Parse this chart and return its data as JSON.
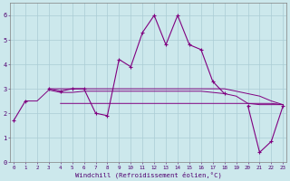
{
  "xlabel": "Windchill (Refroidissement éolien,°C)",
  "x": [
    0,
    1,
    2,
    3,
    4,
    5,
    6,
    7,
    8,
    9,
    10,
    11,
    12,
    13,
    14,
    15,
    16,
    17,
    18,
    19,
    20,
    21,
    22,
    23
  ],
  "main_series": [
    1.7,
    2.5,
    null,
    3.0,
    2.9,
    3.0,
    3.0,
    2.0,
    1.9,
    4.2,
    3.9,
    5.3,
    6.0,
    4.8,
    6.0,
    4.8,
    4.6,
    3.3,
    2.8,
    null,
    2.3,
    0.4,
    0.85,
    2.3
  ],
  "flat1": [
    null,
    2.5,
    2.5,
    2.95,
    2.85,
    2.85,
    2.9,
    2.9,
    2.9,
    2.9,
    2.9,
    2.9,
    2.9,
    2.9,
    2.9,
    2.9,
    2.9,
    2.85,
    2.8,
    2.7,
    2.4,
    2.35,
    2.35,
    2.35
  ],
  "flat2": [
    null,
    null,
    null,
    null,
    2.4,
    2.4,
    2.4,
    2.4,
    2.4,
    2.4,
    2.4,
    2.4,
    2.4,
    2.4,
    2.4,
    2.4,
    2.4,
    2.4,
    2.4,
    2.4,
    2.4,
    2.4,
    2.4,
    2.35
  ],
  "flat3": [
    null,
    null,
    null,
    3.0,
    3.0,
    3.0,
    3.0,
    3.0,
    3.0,
    3.0,
    3.0,
    3.0,
    3.0,
    3.0,
    3.0,
    3.0,
    3.0,
    3.0,
    3.0,
    2.9,
    2.8,
    2.7,
    2.5,
    2.35
  ],
  "line_color": "#800080",
  "bg_color": "#cce8ec",
  "grid_color": "#aaccd4",
  "ylim": [
    0,
    6.5
  ],
  "yticks": [
    0,
    1,
    2,
    3,
    4,
    5,
    6
  ],
  "xlim": [
    -0.3,
    23.3
  ]
}
